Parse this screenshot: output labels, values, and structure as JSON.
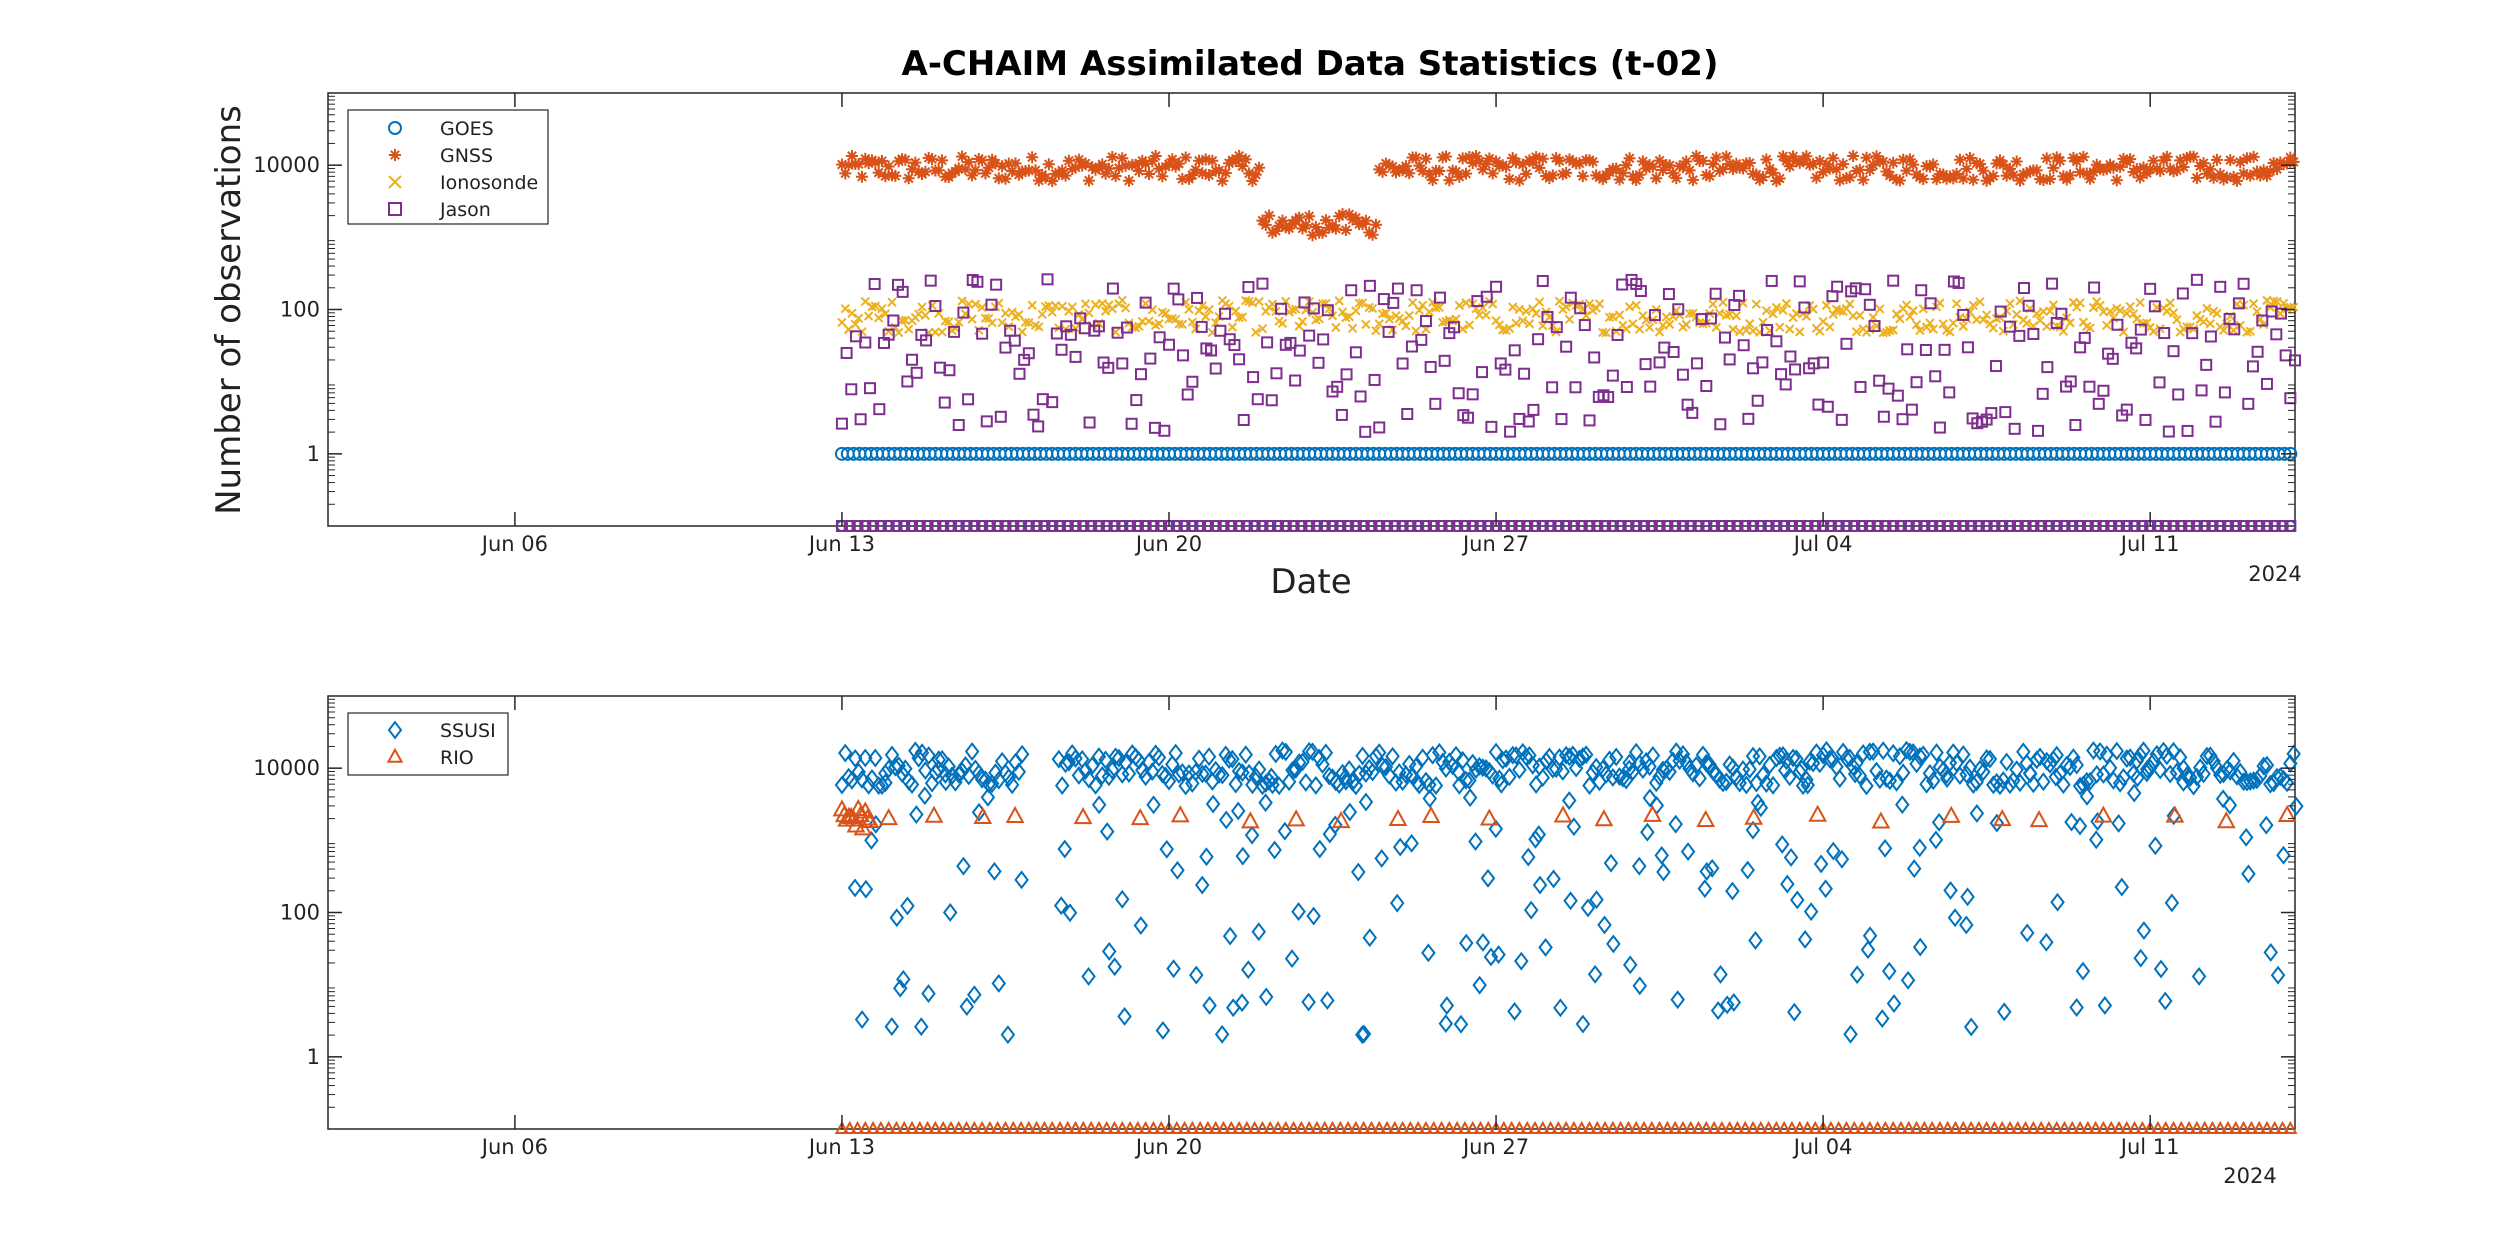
{
  "figure": {
    "title": "A-CHAIM Assimilated Data Statistics (t-02)",
    "year_label": "2024"
  },
  "chart_data": [
    {
      "type": "scatter",
      "xlabel": "Date",
      "ylabel": "Number of observations",
      "x_range": [
        "2024-06-02",
        "2024-07-14"
      ],
      "yscale": "log",
      "ylim": [
        0.1,
        100000
      ],
      "y_tick_values": [
        1,
        100,
        10000
      ],
      "y_tick_labels": [
        "1",
        "100",
        "10000"
      ],
      "x_tick_values": [
        "2024-06-06",
        "2024-06-13",
        "2024-06-20",
        "2024-06-27",
        "2024-07-04",
        "2024-07-11"
      ],
      "x_tick_labels": [
        "Jun 06",
        "Jun 13",
        "Jun 20",
        "Jun 27",
        "Jul 04",
        "Jul 11"
      ],
      "grid": false,
      "legend_position": "top-left",
      "series": [
        {
          "name": "GOES",
          "marker": "circle",
          "color": "#0072BD",
          "start": "2024-06-13",
          "end": "2024-07-14",
          "typical": 1,
          "zero_fill": true
        },
        {
          "name": "GNSS",
          "marker": "asterisk",
          "color": "#D95319",
          "start": "2024-06-13",
          "end": "2024-07-14",
          "typical": 9000,
          "dip": {
            "from": "2024-06-22",
            "to": "2024-06-24",
            "value": 1500
          }
        },
        {
          "name": "Ionosonde",
          "marker": "x",
          "color": "#EDB120",
          "start": "2024-06-13",
          "end": "2024-07-14",
          "typical": 80
        },
        {
          "name": "Jason",
          "marker": "square",
          "color": "#7E2F8E",
          "start": "2024-06-13",
          "end": "2024-07-14",
          "range": [
            2,
            300
          ],
          "zero_fill": true
        }
      ]
    },
    {
      "type": "scatter",
      "xlabel": "",
      "ylabel": "",
      "x_range": [
        "2024-06-02",
        "2024-07-14"
      ],
      "yscale": "log",
      "ylim": [
        0.1,
        100000
      ],
      "y_tick_values": [
        1,
        100,
        10000
      ],
      "y_tick_labels": [
        "1",
        "100",
        "10000"
      ],
      "x_tick_values": [
        "2024-06-06",
        "2024-06-13",
        "2024-06-20",
        "2024-06-27",
        "2024-07-04",
        "2024-07-11"
      ],
      "x_tick_labels": [
        "Jun 06",
        "Jun 13",
        "Jun 20",
        "Jun 27",
        "Jul 04",
        "Jul 11"
      ],
      "grid": false,
      "legend_position": "top-left",
      "series": [
        {
          "name": "SSUSI",
          "marker": "diamond",
          "color": "#0072BD",
          "start": "2024-06-13",
          "end": "2024-07-14",
          "typical": 10000,
          "range": [
            2,
            30000
          ],
          "gap": {
            "from": "2024-06-17",
            "to": "2024-06-17"
          }
        },
        {
          "name": "RIO",
          "marker": "triangle",
          "color": "#D95319",
          "start": "2024-06-13",
          "end": "2024-07-14",
          "typical": 2000,
          "zero_fill": true
        }
      ]
    }
  ]
}
